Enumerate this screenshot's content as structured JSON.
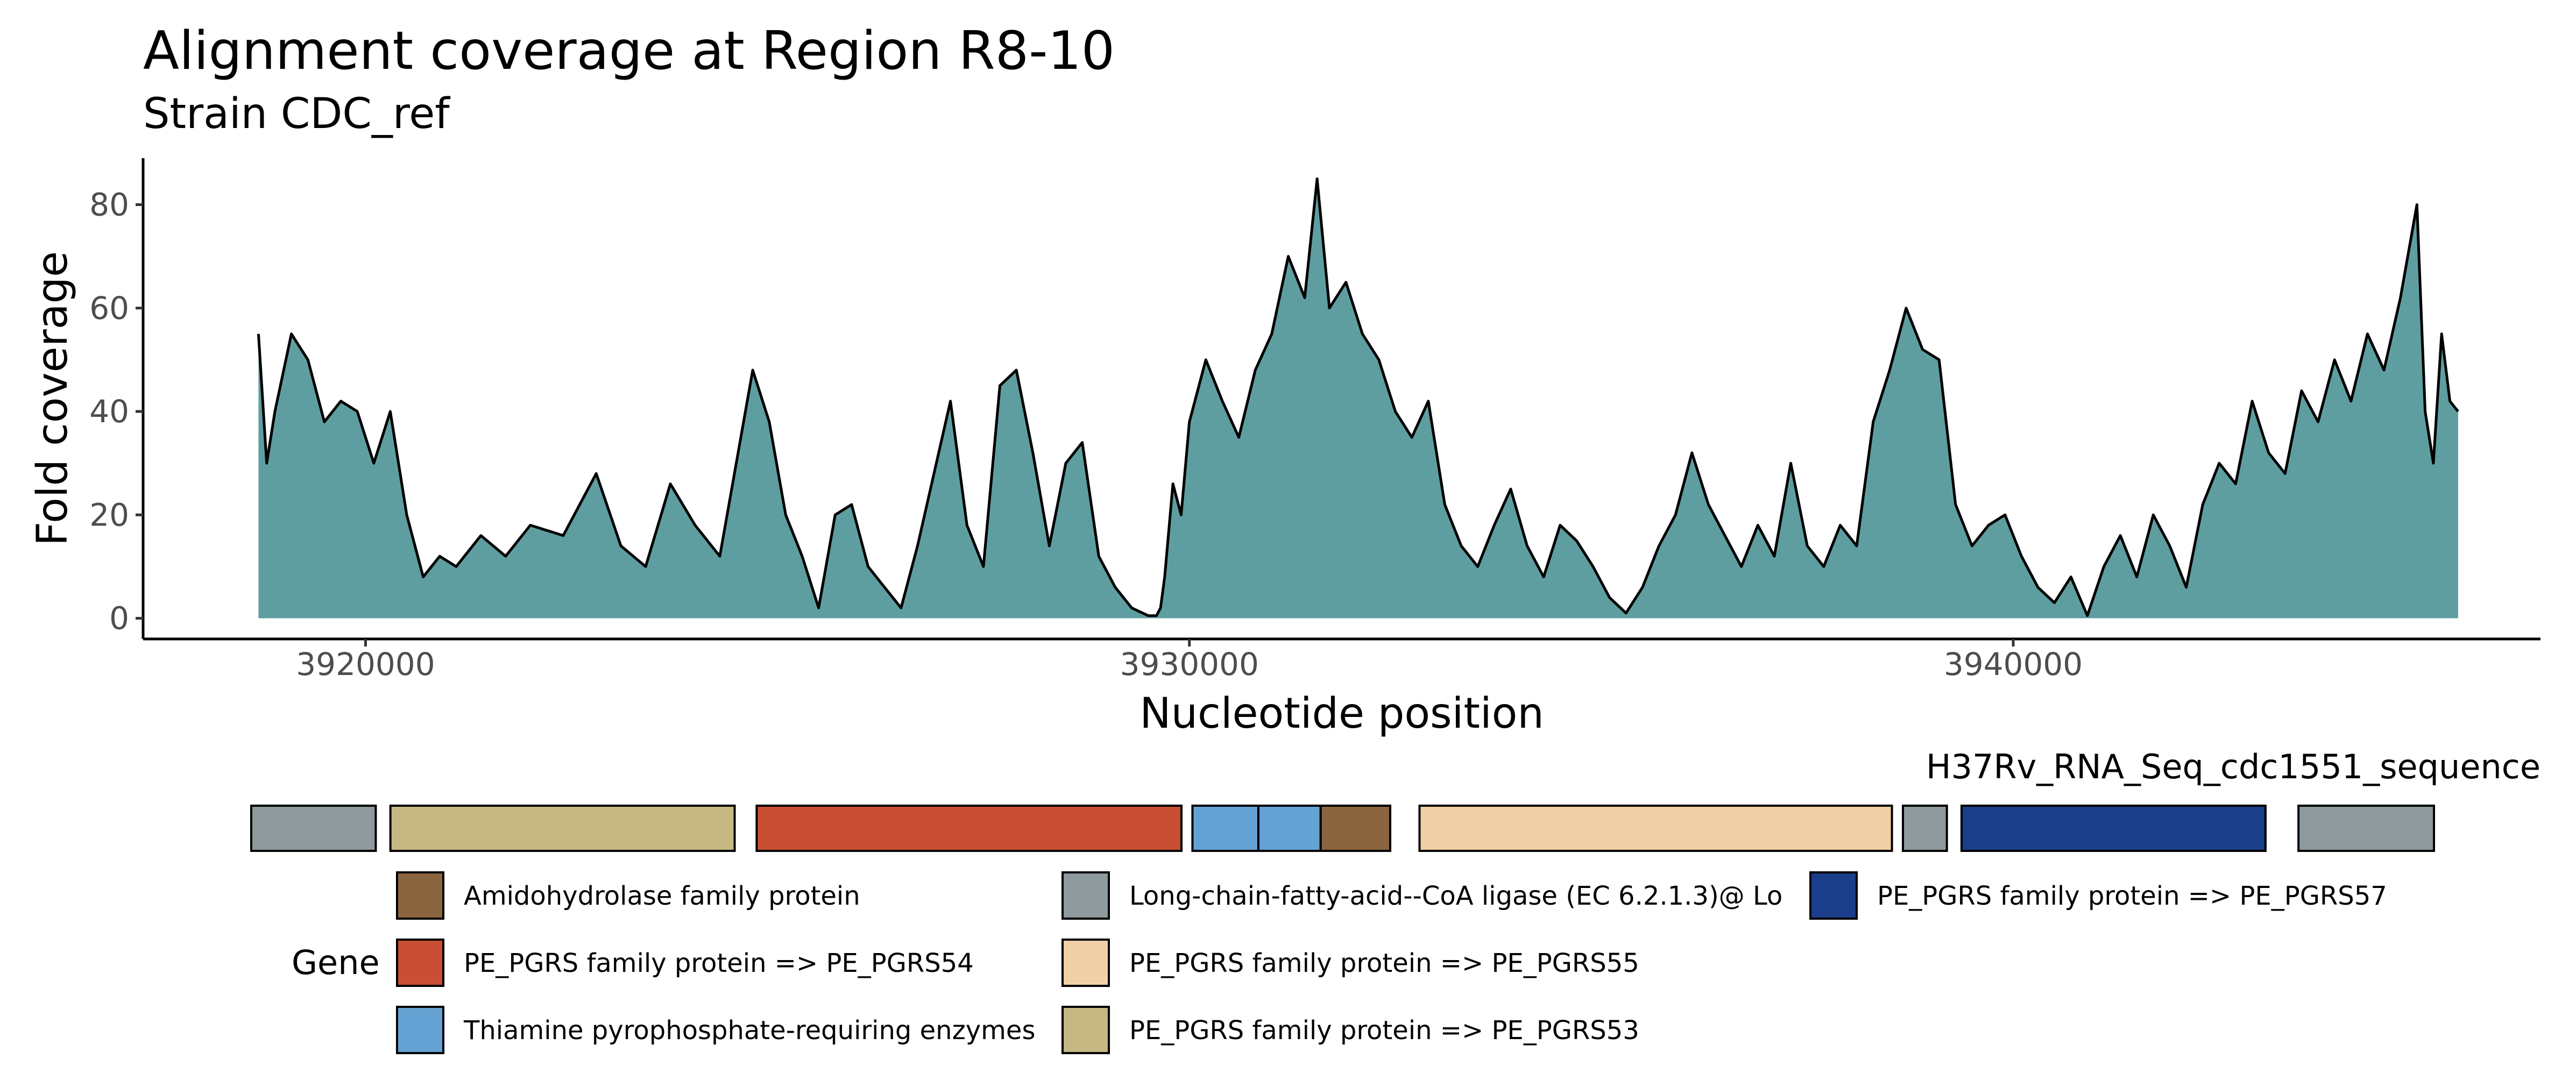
{
  "chart_data": {
    "type": "area",
    "title": "Alignment coverage at Region R8-10",
    "subtitle": "Strain CDC_ref",
    "xlabel": "Nucleotide position",
    "ylabel": "Fold coverage",
    "xlim": [
      3917300,
      3946400
    ],
    "ylim": [
      -4,
      89
    ],
    "x_ticks": [
      3920000,
      3930000,
      3940000
    ],
    "y_ticks": [
      0,
      20,
      40,
      60,
      80
    ],
    "grid": false,
    "fill_color": "#5f9ea0",
    "line_color": "#000000",
    "series": [
      {
        "x": [
          3918700,
          3918800,
          3918900,
          3919100,
          3919300,
          3919500,
          3919700,
          3919900,
          3920100,
          3920300,
          3920500,
          3920700,
          3920900,
          3921100,
          3921400,
          3921700,
          3922000,
          3922400,
          3922800,
          3923100,
          3923400,
          3923700,
          3924000,
          3924300,
          3924500,
          3924700,
          3924900,
          3925100,
          3925300,
          3925500,
          3925700,
          3925900,
          3926100,
          3926300,
          3926500,
          3926700,
          3926900,
          3927100,
          3927300,
          3927500,
          3927700,
          3927900,
          3928100,
          3928300,
          3928500,
          3928700,
          3928900,
          3929100,
          3929300,
          3929500,
          3929600,
          3929650,
          3929700,
          3929800,
          3929900,
          3930000,
          3930200,
          3930400,
          3930600,
          3930800,
          3931000,
          3931200,
          3931400,
          3931550,
          3931700,
          3931900,
          3932100,
          3932300,
          3932500,
          3932700,
          3932900,
          3933100,
          3933300,
          3933500,
          3933700,
          3933900,
          3934100,
          3934300,
          3934500,
          3934700,
          3934900,
          3935100,
          3935300,
          3935500,
          3935700,
          3935900,
          3936100,
          3936300,
          3936500,
          3936700,
          3936900,
          3937100,
          3937300,
          3937500,
          3937700,
          3937900,
          3938100,
          3938300,
          3938500,
          3938700,
          3938900,
          3939100,
          3939300,
          3939500,
          3939700,
          3939900,
          3940100,
          3940300,
          3940500,
          3940700,
          3940900,
          3941100,
          3941300,
          3941500,
          3941700,
          3941900,
          3942100,
          3942300,
          3942500,
          3942700,
          3942900,
          3943100,
          3943300,
          3943500,
          3943700,
          3943900,
          3944100,
          3944300,
          3944500,
          3944700,
          3944900,
          3945000,
          3945100,
          3945200,
          3945300,
          3945400
        ],
        "y": [
          55,
          30,
          40,
          55,
          50,
          38,
          42,
          40,
          30,
          40,
          20,
          8,
          12,
          10,
          16,
          12,
          18,
          16,
          28,
          14,
          10,
          26,
          18,
          12,
          30,
          48,
          38,
          20,
          12,
          2,
          20,
          22,
          10,
          6,
          2,
          14,
          28,
          42,
          18,
          10,
          45,
          48,
          32,
          14,
          30,
          34,
          12,
          6,
          2,
          0.5,
          0.5,
          2,
          8,
          26,
          20,
          38,
          50,
          42,
          35,
          48,
          55,
          70,
          62,
          85,
          60,
          65,
          55,
          50,
          40,
          35,
          42,
          22,
          14,
          10,
          18,
          25,
          14,
          8,
          18,
          15,
          10,
          4,
          1,
          6,
          14,
          20,
          32,
          22,
          16,
          10,
          18,
          12,
          30,
          14,
          10,
          18,
          14,
          38,
          48,
          60,
          52,
          50,
          22,
          14,
          18,
          20,
          12,
          6,
          3,
          8,
          0.5,
          10,
          16,
          8,
          20,
          14,
          6,
          22,
          30,
          26,
          42,
          32,
          28,
          44,
          38,
          50,
          42,
          55,
          48,
          62,
          80,
          40,
          30,
          55,
          42,
          40
        ]
      }
    ],
    "track": {
      "label": "H37Rv_RNA_Seq_cdc1551_sequence",
      "genes": [
        {
          "start": 3918700,
          "end": 3920400,
          "gene": "Long-chain-fatty-acid--CoA ligase (EC 6.2.1.3)@ Lo"
        },
        {
          "start": 3920600,
          "end": 3925300,
          "gene": "PE_PGRS family protein => PE_PGRS53"
        },
        {
          "start": 3925600,
          "end": 3931400,
          "gene": "PE_PGRS family protein => PE_PGRS54"
        },
        {
          "start": 3931550,
          "end": 3932450,
          "gene": "Thiamine pyrophosphate-requiring enzymes"
        },
        {
          "start": 3932450,
          "end": 3933300,
          "gene": "Thiamine pyrophosphate-requiring enzymes"
        },
        {
          "start": 3933300,
          "end": 3934250,
          "gene": "Amidohydrolase family protein"
        },
        {
          "start": 3934650,
          "end": 3941100,
          "gene": "PE_PGRS family protein => PE_PGRS55"
        },
        {
          "start": 3941250,
          "end": 3941850,
          "gene": "Long-chain-fatty-acid--CoA ligase (EC 6.2.1.3)@ Lo"
        },
        {
          "start": 3942050,
          "end": 3946200,
          "gene": "PE_PGRS family protein => PE_PGRS57"
        },
        {
          "start": 3946650,
          "end": 3948500,
          "gene": "Long-chain-fatty-acid--CoA ligase (EC 6.2.1.3)@ Lo"
        }
      ]
    },
    "legend": {
      "title": "Gene",
      "placement": "bottom",
      "entries": [
        {
          "label": "Amidohydrolase family protein",
          "color": "#8b6540"
        },
        {
          "label": "PE_PGRS family protein => PE_PGRS54",
          "color": "#c84f33"
        },
        {
          "label": "Thiamine pyrophosphate-requiring enzymes",
          "color": "#65a2d4"
        },
        {
          "label": "Long-chain-fatty-acid--CoA ligase (EC 6.2.1.3)@ Lo",
          "color": "#8e9a9d"
        },
        {
          "label": "PE_PGRS family protein => PE_PGRS55",
          "color": "#f1d0a7"
        },
        {
          "label": "PE_PGRS family protein => PE_PGRS53",
          "color": "#c6b882"
        },
        {
          "label": "PE_PGRS family protein => PE_PGRS57",
          "color": "#1b3e8a"
        }
      ]
    }
  }
}
